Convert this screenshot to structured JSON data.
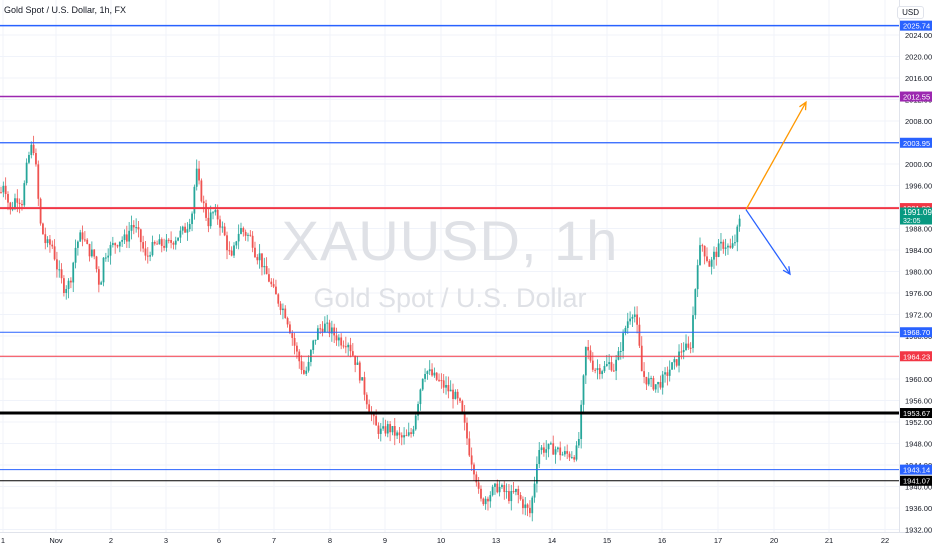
{
  "header": {
    "title": "Gold Spot / U.S. Dollar, 1h, FX",
    "currency": "USD"
  },
  "watermark": {
    "symbol": "XAUUSD, 1h",
    "name": "Gold Spot / U.S. Dollar"
  },
  "colors": {
    "up": "#26a69a",
    "down": "#ef5350",
    "blue": "#2962ff",
    "red": "#f23645",
    "purple": "#9c27b0",
    "black": "#000000",
    "orange": "#ff9800"
  },
  "price_badge": {
    "price": "1991.09",
    "countdown": "32:05"
  },
  "chart_data": {
    "type": "candlestick",
    "title": "Gold Spot / U.S. Dollar, 1h, FX",
    "ylim": [
      1929.5,
      2030
    ],
    "y_ticks": [
      "2024.00",
      "2020.00",
      "2016.00",
      "2012.00",
      "2008.00",
      "2004.00",
      "2000.00",
      "1996.00",
      "1992.00",
      "1988.00",
      "1984.00",
      "1980.00",
      "1976.00",
      "1972.00",
      "1968.00",
      "1964.00",
      "1960.00",
      "1956.00",
      "1952.00",
      "1948.00",
      "1944.00",
      "1940.00",
      "1936.00",
      "1932.00"
    ],
    "x_ticks": [
      "1",
      "Nov",
      "2",
      "3",
      "6",
      "7",
      "8",
      "9",
      "10",
      "13",
      "14",
      "15",
      "16",
      "17",
      "20",
      "21",
      "22"
    ],
    "levels": [
      {
        "price": 2025.74,
        "label": "2025.74",
        "color": "blue",
        "width": 1.5
      },
      {
        "price": 2012.55,
        "label": "2012.55",
        "color": "purple",
        "width": 1.5
      },
      {
        "price": 2003.95,
        "label": "2003.95",
        "color": "blue",
        "width": 1.3
      },
      {
        "price": 1991.8,
        "label": "1991.80",
        "color": "red",
        "width": 2
      },
      {
        "price": 1968.7,
        "label": "1968.70",
        "color": "blue",
        "width": 1
      },
      {
        "price": 1964.23,
        "label": "1964.23",
        "color": "red",
        "width": 1
      },
      {
        "price": 1953.67,
        "label": "1953.67",
        "color": "black",
        "width": 3
      },
      {
        "price": 1943.14,
        "label": "1943.14",
        "color": "blue",
        "width": 1
      },
      {
        "price": 1941.07,
        "label": "1941.07",
        "color": "black",
        "width": 1
      }
    ],
    "path_points": [
      [
        0,
        1994
      ],
      [
        4,
        1997
      ],
      [
        10,
        1991
      ],
      [
        16,
        1994
      ],
      [
        22,
        1993
      ],
      [
        28,
        2001
      ],
      [
        33,
        2004
      ],
      [
        36,
        1999
      ],
      [
        40,
        1989
      ],
      [
        46,
        1985
      ],
      [
        52,
        1985
      ],
      [
        58,
        1980
      ],
      [
        64,
        1977
      ],
      [
        70,
        1978
      ],
      [
        76,
        1985
      ],
      [
        82,
        1987
      ],
      [
        88,
        1984
      ],
      [
        94,
        1983
      ],
      [
        100,
        1977
      ],
      [
        104,
        1983
      ],
      [
        108,
        1984
      ],
      [
        114,
        1985
      ],
      [
        120,
        1986
      ],
      [
        126,
        1986
      ],
      [
        132,
        1989
      ],
      [
        138,
        1987
      ],
      [
        142,
        1985
      ],
      [
        146,
        1982
      ],
      [
        150,
        1984
      ],
      [
        156,
        1985
      ],
      [
        162,
        1985
      ],
      [
        168,
        1985
      ],
      [
        174,
        1986
      ],
      [
        180,
        1987
      ],
      [
        186,
        1988
      ],
      [
        192,
        1991
      ],
      [
        196,
        1999
      ],
      [
        200,
        1995
      ],
      [
        204,
        1992
      ],
      [
        208,
        1989
      ],
      [
        212,
        1991
      ],
      [
        218,
        1990
      ],
      [
        224,
        1987
      ],
      [
        228,
        1984
      ],
      [
        232,
        1982
      ],
      [
        236,
        1986
      ],
      [
        240,
        1988
      ],
      [
        246,
        1987
      ],
      [
        252,
        1986
      ],
      [
        256,
        1983
      ],
      [
        260,
        1983
      ],
      [
        264,
        1980
      ],
      [
        268,
        1979
      ],
      [
        274,
        1976
      ],
      [
        280,
        1974
      ],
      [
        286,
        1972
      ],
      [
        292,
        1968
      ],
      [
        298,
        1964
      ],
      [
        304,
        1961
      ],
      [
        308,
        1962
      ],
      [
        312,
        1966
      ],
      [
        318,
        1969
      ],
      [
        324,
        1970
      ],
      [
        330,
        1969
      ],
      [
        336,
        1968
      ],
      [
        342,
        1967
      ],
      [
        348,
        1967
      ],
      [
        354,
        1964
      ],
      [
        358,
        1962
      ],
      [
        364,
        1958
      ],
      [
        370,
        1954
      ],
      [
        376,
        1951
      ],
      [
        382,
        1950
      ],
      [
        388,
        1951
      ],
      [
        394,
        1950
      ],
      [
        400,
        1949
      ],
      [
        406,
        1949
      ],
      [
        412,
        1950
      ],
      [
        418,
        1956
      ],
      [
        424,
        1962
      ],
      [
        430,
        1961
      ],
      [
        436,
        1960
      ],
      [
        442,
        1959
      ],
      [
        448,
        1958
      ],
      [
        454,
        1957
      ],
      [
        460,
        1955
      ],
      [
        466,
        1950
      ],
      [
        470,
        1946
      ],
      [
        476,
        1942
      ],
      [
        480,
        1937
      ],
      [
        486,
        1938
      ],
      [
        492,
        1939
      ],
      [
        498,
        1940
      ],
      [
        504,
        1939
      ],
      [
        510,
        1938
      ],
      [
        516,
        1939
      ],
      [
        522,
        1937
      ],
      [
        530,
        1935
      ],
      [
        534,
        1940
      ],
      [
        538,
        1947
      ],
      [
        544,
        1947
      ],
      [
        550,
        1947
      ],
      [
        556,
        1947
      ],
      [
        562,
        1946
      ],
      [
        568,
        1946
      ],
      [
        574,
        1946
      ],
      [
        578,
        1947
      ],
      [
        582,
        1956
      ],
      [
        586,
        1966
      ],
      [
        590,
        1964
      ],
      [
        594,
        1962
      ],
      [
        598,
        1962
      ],
      [
        604,
        1962
      ],
      [
        610,
        1963
      ],
      [
        614,
        1962
      ],
      [
        618,
        1964
      ],
      [
        622,
        1967
      ],
      [
        626,
        1970
      ],
      [
        630,
        1972
      ],
      [
        634,
        1973
      ],
      [
        638,
        1968
      ],
      [
        642,
        1961
      ],
      [
        646,
        1960
      ],
      [
        652,
        1959
      ],
      [
        658,
        1959
      ],
      [
        664,
        1960
      ],
      [
        670,
        1962
      ],
      [
        676,
        1963
      ],
      [
        680,
        1965
      ],
      [
        684,
        1966
      ],
      [
        690,
        1965
      ],
      [
        694,
        1974
      ],
      [
        698,
        1983
      ],
      [
        702,
        1985
      ],
      [
        706,
        1983
      ],
      [
        710,
        1981
      ],
      [
        714,
        1983
      ],
      [
        718,
        1984
      ],
      [
        722,
        1985
      ],
      [
        726,
        1985
      ],
      [
        730,
        1984
      ],
      [
        734,
        1985
      ],
      [
        738,
        1988
      ],
      [
        742,
        1991.1
      ]
    ],
    "arrows": [
      {
        "from": [
          746,
          1991.5
        ],
        "to": [
          806,
          2011.5
        ],
        "color": "orange"
      },
      {
        "from": [
          746,
          1991.5
        ],
        "to": [
          790,
          1979.5
        ],
        "color": "blue"
      }
    ]
  }
}
